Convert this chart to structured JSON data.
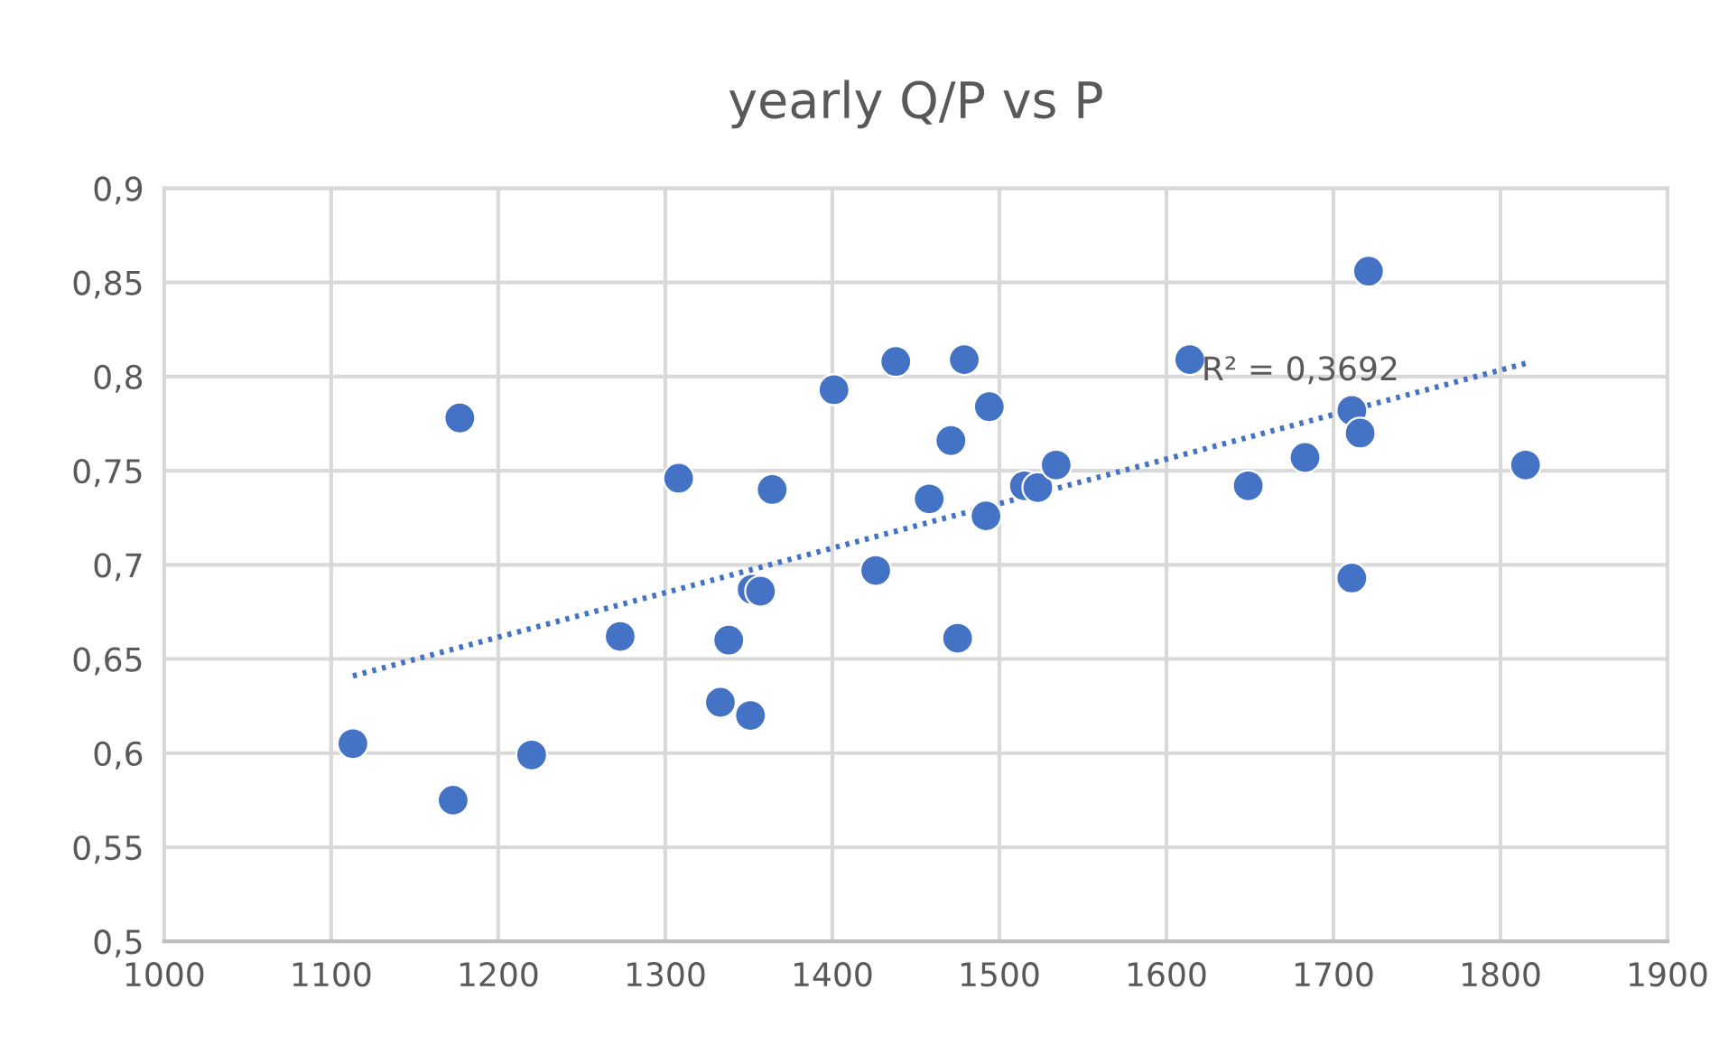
{
  "chart_data": {
    "type": "scatter",
    "title": "yearly Q/P vs P",
    "series": [
      {
        "color": "#4472c4",
        "marker": "circle",
        "x": [
          1113,
          1173,
          1177,
          1220,
          1273,
          1308,
          1333,
          1338,
          1351,
          1352,
          1357,
          1364,
          1401,
          1426,
          1438,
          1458,
          1471,
          1475,
          1479,
          1492,
          1494,
          1515,
          1523,
          1534,
          1614,
          1649,
          1683,
          1711,
          1711,
          1716,
          1721,
          1815
        ],
        "values": [
          0.605,
          0.575,
          0.778,
          0.599,
          0.662,
          0.746,
          0.627,
          0.66,
          0.62,
          0.687,
          0.686,
          0.74,
          0.793,
          0.697,
          0.808,
          0.735,
          0.766,
          0.661,
          0.809,
          0.726,
          0.784,
          0.742,
          0.741,
          0.753,
          0.809,
          0.742,
          0.757,
          0.782,
          0.693,
          0.77,
          0.856,
          0.753
        ]
      },
      {
        "type": "line",
        "color": "#4472c4",
        "line_style": "dotted",
        "x": [
          1113,
          1815
        ],
        "values": [
          0.641,
          0.807
        ]
      }
    ],
    "annotations": [
      "R² = 0,3692"
    ],
    "xlim": [
      1000,
      1900
    ],
    "xticks": [
      1000,
      1100,
      1200,
      1300,
      1400,
      1500,
      1600,
      1700,
      1800,
      1900
    ],
    "ylim": [
      0.5,
      0.9
    ],
    "yticks": [
      {
        "value": 0.5,
        "label": "0,5"
      },
      {
        "value": 0.55,
        "label": "0,55"
      },
      {
        "value": 0.6,
        "label": "0,6"
      },
      {
        "value": 0.65,
        "label": "0,65"
      },
      {
        "value": 0.7,
        "label": "0,7"
      },
      {
        "value": 0.75,
        "label": "0,75"
      },
      {
        "value": 0.8,
        "label": "0,8"
      },
      {
        "value": 0.85,
        "label": "0,85"
      },
      {
        "value": 0.9,
        "label": "0,9"
      }
    ],
    "grid": true
  }
}
